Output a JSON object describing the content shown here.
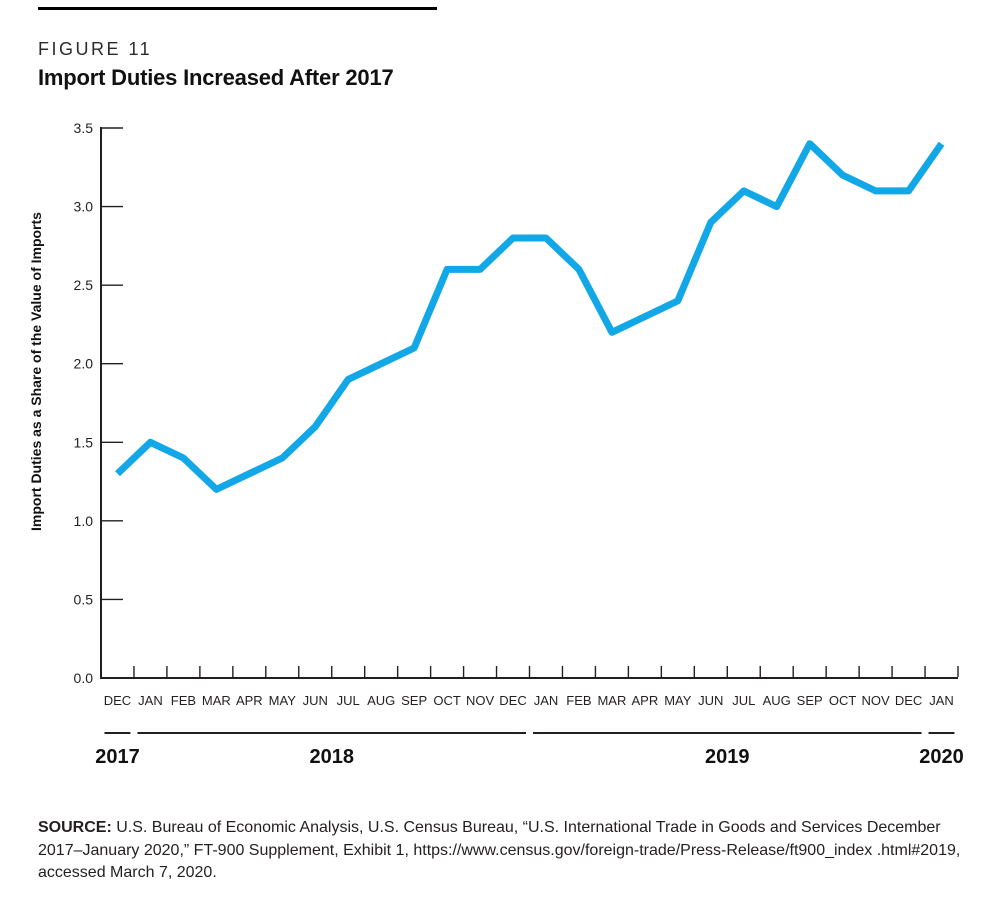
{
  "figure": {
    "kicker": "FIGURE 11",
    "title": "Import Duties Increased After 2017"
  },
  "chart_data": {
    "type": "line",
    "title": "Import Duties Increased After 2017",
    "ylabel": "Import Duties as a Share of the Value of Imports",
    "xlabel": "",
    "ylim": [
      0,
      3.5
    ],
    "yticks": [
      "0.0",
      "0.5",
      "1.0",
      "1.5",
      "2.0",
      "2.5",
      "3.0",
      "3.5"
    ],
    "grid": false,
    "legend": false,
    "line_color": "#12A7E6",
    "axis_color": "#231F20",
    "categories": [
      "DEC",
      "JAN",
      "FEB",
      "MAR",
      "APR",
      "MAY",
      "JUN",
      "JUL",
      "AUG",
      "SEP",
      "OCT",
      "NOV",
      "DEC",
      "JAN",
      "FEB",
      "MAR",
      "APR",
      "MAY",
      "JUN",
      "JUL",
      "AUG",
      "SEP",
      "OCT",
      "NOV",
      "DEC",
      "JAN"
    ],
    "values": [
      1.3,
      1.5,
      1.4,
      1.2,
      1.3,
      1.4,
      1.6,
      1.9,
      2.0,
      2.1,
      2.6,
      2.6,
      2.8,
      2.8,
      2.6,
      2.2,
      2.3,
      2.4,
      2.9,
      3.1,
      3.0,
      3.4,
      3.2,
      3.1,
      3.1,
      3.4
    ],
    "year_groups": [
      {
        "label": "2017",
        "months": 1
      },
      {
        "label": "2018",
        "months": 12
      },
      {
        "label": "2019",
        "months": 12
      },
      {
        "label": "2020",
        "months": 1
      }
    ]
  },
  "source": {
    "label": "SOURCE:",
    "text": "U.S. Bureau of Economic Analysis, U.S. Census Bureau, “U.S. International Trade in Goods and Services December 2017–January 2020,” FT-900 Supplement, Exhibit 1, https://www.census.gov/foreign-trade/Press-Release/ft900_index .html#2019, accessed March 7, 2020."
  }
}
